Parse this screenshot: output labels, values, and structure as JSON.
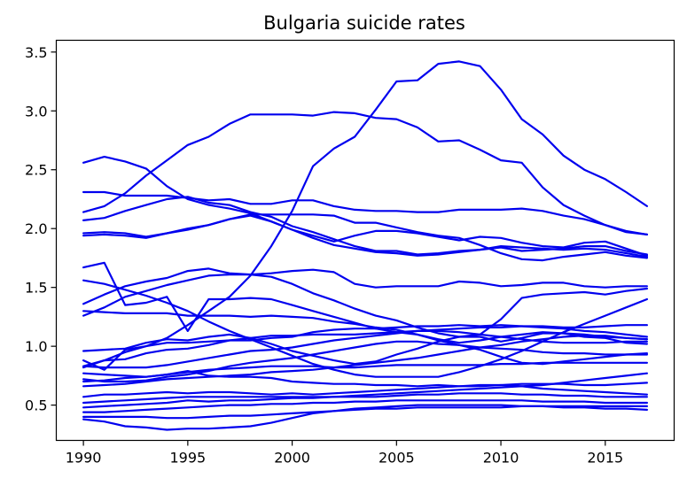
{
  "chart_data": {
    "type": "line",
    "title": "Bulgaria suicide rates",
    "xlabel": "",
    "ylabel": "",
    "xlim": [
      1988.7,
      2018.3
    ],
    "ylim": [
      0.2,
      3.6
    ],
    "x_ticks": [
      1990,
      1995,
      2000,
      2005,
      2010,
      2015
    ],
    "x_tick_labels": [
      "1990",
      "1995",
      "2000",
      "2005",
      "2010",
      "2015"
    ],
    "y_ticks": [
      0.5,
      1.0,
      1.5,
      2.0,
      2.5,
      3.0,
      3.5
    ],
    "y_tick_labels": [
      "0.5",
      "1.0",
      "1.5",
      "2.0",
      "2.5",
      "3.0",
      "3.5"
    ],
    "line_color": "#0000ee",
    "grid": false,
    "x": [
      1990,
      1991,
      1992,
      1993,
      1994,
      1995,
      1996,
      1997,
      1998,
      1999,
      2000,
      2001,
      2002,
      2003,
      2004,
      2005,
      2006,
      2007,
      2008,
      2009,
      2010,
      2011,
      2012,
      2013,
      2014,
      2015,
      2016,
      2017
    ],
    "series": [
      {
        "values": [
          2.14,
          2.19,
          2.3,
          2.45,
          2.58,
          2.71,
          2.78,
          2.89,
          2.97,
          2.97,
          2.97,
          2.96,
          2.99,
          2.98,
          2.94,
          2.93,
          2.86,
          2.74,
          2.75,
          2.67,
          2.58,
          2.56,
          2.35,
          2.2,
          2.11,
          2.03,
          1.97,
          1.95
        ]
      },
      {
        "values": [
          0.82,
          0.88,
          0.95,
          1.0,
          1.07,
          1.18,
          1.3,
          1.42,
          1.6,
          1.85,
          2.15,
          2.53,
          2.68,
          2.78,
          3.01,
          3.25,
          3.26,
          3.4,
          3.42,
          3.38,
          3.18,
          2.93,
          2.8,
          2.62,
          2.5,
          2.42,
          2.31,
          2.19
        ]
      },
      {
        "values": [
          2.56,
          2.61,
          2.57,
          2.51,
          2.36,
          2.25,
          2.2,
          2.17,
          2.13,
          2.06,
          1.99,
          1.94,
          1.89,
          1.94,
          1.98,
          1.98,
          1.96,
          1.93,
          1.9,
          1.93,
          1.92,
          1.88,
          1.85,
          1.84,
          1.88,
          1.89,
          1.83,
          1.77
        ]
      },
      {
        "values": [
          2.31,
          2.31,
          2.28,
          2.28,
          2.28,
          2.26,
          2.24,
          2.25,
          2.21,
          2.21,
          2.24,
          2.24,
          2.19,
          2.16,
          2.15,
          2.15,
          2.14,
          2.14,
          2.16,
          2.16,
          2.16,
          2.17,
          2.15,
          2.11,
          2.08,
          2.03,
          1.98,
          1.95
        ]
      },
      {
        "values": [
          2.07,
          2.09,
          2.15,
          2.2,
          2.25,
          2.27,
          2.22,
          2.2,
          2.14,
          2.1,
          2.02,
          1.97,
          1.91,
          1.85,
          1.81,
          1.81,
          1.78,
          1.79,
          1.81,
          1.82,
          1.84,
          1.81,
          1.82,
          1.83,
          1.85,
          1.85,
          1.81,
          1.78
        ]
      },
      {
        "values": [
          1.96,
          1.97,
          1.96,
          1.93,
          1.96,
          2.0,
          2.03,
          2.08,
          2.12,
          2.12,
          2.12,
          2.12,
          2.11,
          2.05,
          2.05,
          2.01,
          1.97,
          1.94,
          1.92,
          1.86,
          1.79,
          1.74,
          1.73,
          1.76,
          1.78,
          1.8,
          1.77,
          1.75
        ]
      },
      {
        "values": [
          1.94,
          1.95,
          1.94,
          1.92,
          1.96,
          1.99,
          2.03,
          2.08,
          2.11,
          2.06,
          1.99,
          1.92,
          1.86,
          1.83,
          1.8,
          1.79,
          1.77,
          1.78,
          1.8,
          1.82,
          1.85,
          1.84,
          1.83,
          1.82,
          1.83,
          1.82,
          1.79,
          1.76
        ]
      },
      {
        "values": [
          1.67,
          1.71,
          1.35,
          1.37,
          1.42,
          1.13,
          1.4,
          1.4,
          1.41,
          1.4,
          1.35,
          1.3,
          1.25,
          1.2,
          1.15,
          1.12,
          1.1,
          1.06,
          1.03,
          1.05,
          1.08,
          1.1,
          1.12,
          1.11,
          1.1,
          1.08,
          1.07,
          1.06
        ]
      },
      {
        "values": [
          1.56,
          1.53,
          1.48,
          1.43,
          1.37,
          1.3,
          1.21,
          1.13,
          1.06,
          0.99,
          0.92,
          0.85,
          0.8,
          0.76,
          0.74,
          0.74,
          0.74,
          0.74,
          0.78,
          0.83,
          0.89,
          0.96,
          1.04,
          1.12,
          1.19,
          1.26,
          1.33,
          1.4
        ]
      },
      {
        "values": [
          1.36,
          1.44,
          1.51,
          1.55,
          1.58,
          1.64,
          1.66,
          1.62,
          1.61,
          1.62,
          1.64,
          1.65,
          1.63,
          1.53,
          1.5,
          1.51,
          1.51,
          1.51,
          1.55,
          1.54,
          1.51,
          1.52,
          1.54,
          1.54,
          1.51,
          1.5,
          1.51,
          1.51
        ]
      },
      {
        "values": [
          1.26,
          1.33,
          1.42,
          1.47,
          1.52,
          1.56,
          1.6,
          1.61,
          1.61,
          1.59,
          1.53,
          1.45,
          1.39,
          1.32,
          1.26,
          1.22,
          1.16,
          1.11,
          1.08,
          1.1,
          1.23,
          1.41,
          1.44,
          1.45,
          1.46,
          1.44,
          1.47,
          1.49
        ]
      },
      {
        "values": [
          1.3,
          1.29,
          1.28,
          1.28,
          1.28,
          1.26,
          1.26,
          1.26,
          1.25,
          1.26,
          1.25,
          1.24,
          1.21,
          1.19,
          1.16,
          1.14,
          1.1,
          1.05,
          1.01,
          0.99,
          0.98,
          0.97,
          0.95,
          0.94,
          0.94,
          0.93,
          0.93,
          0.93
        ]
      },
      {
        "values": [
          0.96,
          0.97,
          0.98,
          1.03,
          1.06,
          1.05,
          1.08,
          1.1,
          1.07,
          1.02,
          0.96,
          0.92,
          0.88,
          0.85,
          0.87,
          0.93,
          0.98,
          1.04,
          1.08,
          1.08,
          1.04,
          1.07,
          1.11,
          1.11,
          1.08,
          1.07,
          1.03,
          1.02
        ]
      },
      {
        "values": [
          0.88,
          0.8,
          0.97,
          1.0,
          1.03,
          1.03,
          1.04,
          1.05,
          1.05,
          1.07,
          1.08,
          1.12,
          1.14,
          1.15,
          1.15,
          1.16,
          1.17,
          1.17,
          1.18,
          1.17,
          1.18,
          1.17,
          1.16,
          1.15,
          1.13,
          1.12,
          1.1,
          1.08
        ]
      },
      {
        "values": [
          0.83,
          0.88,
          0.89,
          0.94,
          0.97,
          0.98,
          1.01,
          1.05,
          1.07,
          1.09,
          1.09,
          1.1,
          1.1,
          1.1,
          1.11,
          1.12,
          1.13,
          1.14,
          1.15,
          1.16,
          1.16,
          1.17,
          1.17,
          1.16,
          1.16,
          1.17,
          1.18,
          1.18
        ]
      },
      {
        "values": [
          0.83,
          0.82,
          0.82,
          0.82,
          0.84,
          0.87,
          0.9,
          0.93,
          0.96,
          0.97,
          0.99,
          1.02,
          1.05,
          1.07,
          1.09,
          1.11,
          1.13,
          1.13,
          1.12,
          1.1,
          1.08,
          1.06,
          1.04,
          1.03,
          1.03,
          1.03,
          1.04,
          1.04
        ]
      },
      {
        "values": [
          0.72,
          0.7,
          0.7,
          0.71,
          0.74,
          0.76,
          0.79,
          0.83,
          0.86,
          0.88,
          0.9,
          0.93,
          0.96,
          0.99,
          1.02,
          1.04,
          1.04,
          1.02,
          1.01,
          0.97,
          0.91,
          0.86,
          0.85,
          0.87,
          0.89,
          0.91,
          0.93,
          0.94
        ]
      },
      {
        "values": [
          0.7,
          0.71,
          0.73,
          0.74,
          0.76,
          0.78,
          0.8,
          0.81,
          0.82,
          0.83,
          0.83,
          0.83,
          0.82,
          0.82,
          0.83,
          0.84,
          0.84,
          0.84,
          0.84,
          0.84,
          0.85,
          0.85,
          0.86,
          0.86,
          0.86,
          0.86,
          0.86,
          0.86
        ]
      },
      {
        "values": [
          0.66,
          0.67,
          0.68,
          0.7,
          0.72,
          0.73,
          0.74,
          0.75,
          0.76,
          0.78,
          0.79,
          0.8,
          0.82,
          0.84,
          0.86,
          0.88,
          0.9,
          0.93,
          0.96,
          0.99,
          1.01,
          1.04,
          1.06,
          1.08,
          1.09,
          1.09,
          1.07,
          1.06
        ]
      },
      {
        "values": [
          0.77,
          0.76,
          0.75,
          0.74,
          0.76,
          0.79,
          0.75,
          0.74,
          0.74,
          0.73,
          0.7,
          0.69,
          0.68,
          0.68,
          0.67,
          0.67,
          0.66,
          0.67,
          0.66,
          0.66,
          0.67,
          0.68,
          0.68,
          0.68,
          0.67,
          0.67,
          0.68,
          0.69
        ]
      },
      {
        "values": [
          0.57,
          0.59,
          0.59,
          0.6,
          0.61,
          0.6,
          0.61,
          0.61,
          0.6,
          0.59,
          0.6,
          0.59,
          0.6,
          0.61,
          0.62,
          0.63,
          0.64,
          0.65,
          0.66,
          0.67,
          0.67,
          0.66,
          0.64,
          0.63,
          0.62,
          0.61,
          0.6,
          0.59
        ]
      },
      {
        "values": [
          0.52,
          0.53,
          0.54,
          0.55,
          0.56,
          0.57,
          0.57,
          0.57,
          0.57,
          0.57,
          0.57,
          0.57,
          0.57,
          0.58,
          0.59,
          0.6,
          0.61,
          0.62,
          0.63,
          0.64,
          0.65,
          0.66,
          0.67,
          0.69,
          0.71,
          0.73,
          0.75,
          0.77
        ]
      },
      {
        "values": [
          0.48,
          0.49,
          0.5,
          0.51,
          0.52,
          0.54,
          0.53,
          0.54,
          0.54,
          0.55,
          0.56,
          0.56,
          0.57,
          0.57,
          0.57,
          0.58,
          0.59,
          0.59,
          0.6,
          0.6,
          0.6,
          0.59,
          0.59,
          0.58,
          0.58,
          0.57,
          0.57,
          0.57
        ]
      },
      {
        "values": [
          0.44,
          0.44,
          0.45,
          0.46,
          0.47,
          0.48,
          0.49,
          0.5,
          0.5,
          0.51,
          0.51,
          0.52,
          0.52,
          0.53,
          0.53,
          0.54,
          0.54,
          0.54,
          0.54,
          0.54,
          0.54,
          0.54,
          0.53,
          0.53,
          0.53,
          0.52,
          0.52,
          0.52
        ]
      },
      {
        "values": [
          0.4,
          0.4,
          0.4,
          0.4,
          0.39,
          0.39,
          0.4,
          0.41,
          0.41,
          0.42,
          0.43,
          0.44,
          0.45,
          0.46,
          0.47,
          0.47,
          0.48,
          0.48,
          0.48,
          0.48,
          0.48,
          0.49,
          0.49,
          0.49,
          0.49,
          0.49,
          0.49,
          0.49
        ]
      },
      {
        "values": [
          0.38,
          0.36,
          0.32,
          0.31,
          0.29,
          0.3,
          0.3,
          0.31,
          0.32,
          0.35,
          0.39,
          0.43,
          0.45,
          0.47,
          0.48,
          0.49,
          0.5,
          0.5,
          0.5,
          0.5,
          0.5,
          0.49,
          0.49,
          0.48,
          0.48,
          0.47,
          0.47,
          0.46
        ]
      }
    ]
  }
}
